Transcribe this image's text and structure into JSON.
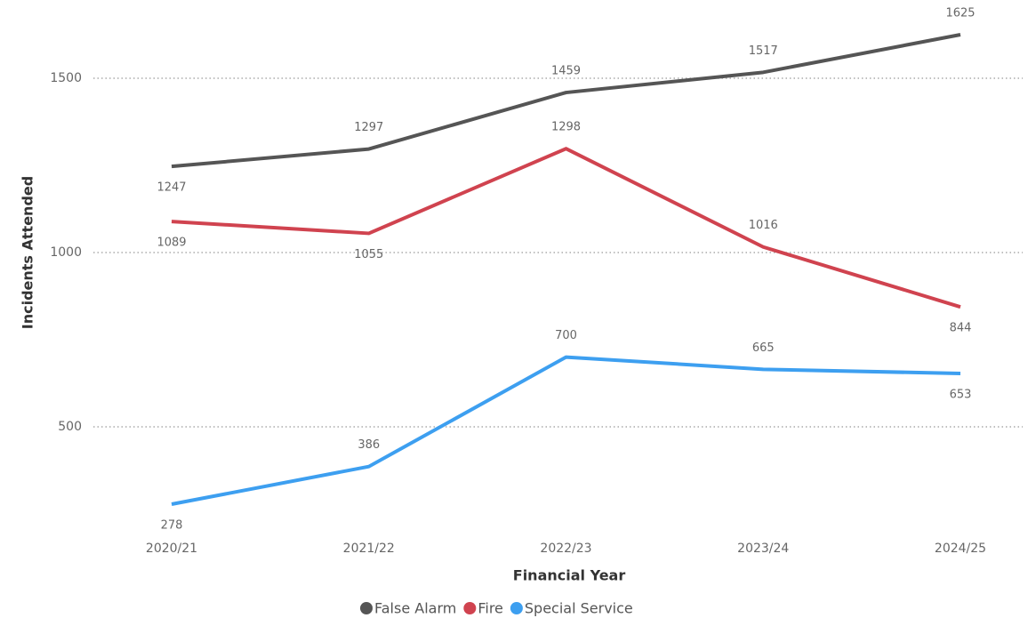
{
  "chart_data": {
    "type": "line",
    "categories": [
      "2020/21",
      "2021/22",
      "2022/23",
      "2023/24",
      "2024/25"
    ],
    "series": [
      {
        "name": "False Alarm",
        "color": "#555555",
        "values": [
          1247,
          1297,
          1459,
          1517,
          1625
        ]
      },
      {
        "name": "Fire",
        "color": "#d0434f",
        "values": [
          1089,
          1055,
          1298,
          1016,
          844
        ]
      },
      {
        "name": "Special Service",
        "color": "#3d9ff0",
        "values": [
          278,
          386,
          700,
          665,
          653
        ]
      }
    ],
    "ylim": [
      200,
      1700
    ],
    "yticks": [
      500,
      1000,
      1500
    ],
    "grid": true,
    "xlabel": "Financial Year",
    "ylabel": "Incidents Attended"
  }
}
